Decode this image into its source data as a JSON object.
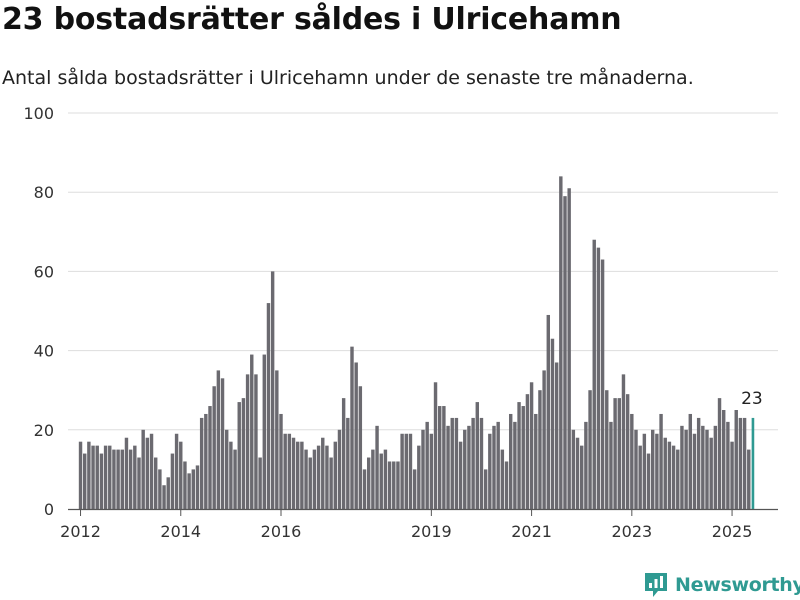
{
  "title": "23 bostadsrätter såldes i Ulricehamn",
  "subtitle": "Antal sålda bostadsrätter i Ulricehamn under de senaste tre månaderna.",
  "brand": {
    "name": "Newsworthy",
    "color": "#2f9a92"
  },
  "colors": {
    "bar": "#6b6a70",
    "highlight": "#2f9a92",
    "grid": "#dddddd",
    "axis": "#555555"
  },
  "chart_data": {
    "type": "bar",
    "title": "23 bostadsrätter såldes i Ulricehamn",
    "subtitle": "Antal sålda bostadsrätter i Ulricehamn under de senaste tre månaderna.",
    "xlabel": "",
    "ylabel": "",
    "ylim": [
      0,
      100
    ],
    "yticks": [
      0,
      20,
      40,
      60,
      80,
      100
    ],
    "xrange": [
      "2011-10",
      "2025-12"
    ],
    "xticks": [
      {
        "label": "2012",
        "month": "2012-01"
      },
      {
        "label": "2014",
        "month": "2014-01"
      },
      {
        "label": "2016",
        "month": "2016-01"
      },
      {
        "label": "2019",
        "month": "2019-01"
      },
      {
        "label": "2021",
        "month": "2021-01"
      },
      {
        "label": "2023",
        "month": "2023-01"
      },
      {
        "label": "2025",
        "month": "2025-01"
      }
    ],
    "grid": true,
    "legend": "none",
    "start_month": "2012-01",
    "frequency": "monthly",
    "values": [
      17,
      14,
      17,
      16,
      16,
      14,
      16,
      16,
      15,
      15,
      15,
      18,
      15,
      16,
      13,
      20,
      18,
      19,
      13,
      10,
      6,
      8,
      14,
      19,
      17,
      12,
      9,
      10,
      11,
      23,
      24,
      26,
      31,
      35,
      33,
      20,
      17,
      15,
      27,
      28,
      34,
      39,
      34,
      13,
      39,
      52,
      60,
      35,
      24,
      19,
      19,
      18,
      17,
      17,
      15,
      13,
      15,
      16,
      18,
      16,
      13,
      17,
      20,
      28,
      23,
      41,
      37,
      31,
      10,
      13,
      15,
      21,
      14,
      15,
      12,
      12,
      12,
      19,
      19,
      19,
      10,
      16,
      20,
      22,
      19,
      32,
      26,
      26,
      21,
      23,
      23,
      17,
      20,
      21,
      23,
      27,
      23,
      10,
      19,
      21,
      22,
      15,
      12,
      24,
      22,
      27,
      26,
      29,
      32,
      24,
      30,
      35,
      49,
      43,
      37,
      84,
      79,
      81,
      20,
      18,
      16,
      22,
      30,
      68,
      66,
      63,
      30,
      22,
      28,
      28,
      34,
      29,
      24,
      20,
      16,
      19,
      14,
      20,
      19,
      24,
      18,
      17,
      16,
      15,
      21,
      20,
      24,
      19,
      23,
      21,
      20,
      18,
      21,
      28,
      25,
      22,
      17,
      25,
      23,
      23,
      15,
      23
    ],
    "highlight": {
      "index": 161,
      "value": 23,
      "label": "23"
    }
  }
}
